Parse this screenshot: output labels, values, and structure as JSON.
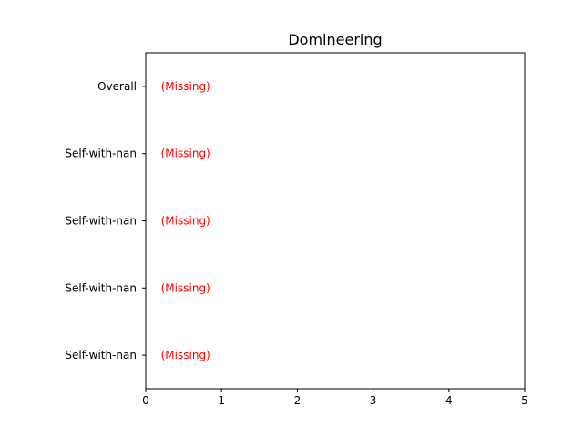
{
  "chart_data": {
    "type": "bar",
    "title": "Domineering",
    "xlabel": "",
    "ylabel": "",
    "xlim": [
      0,
      5
    ],
    "x_ticks": [
      "0",
      "1",
      "2",
      "3",
      "4",
      "5"
    ],
    "categories": [
      "Overall",
      "Self-with-nan",
      "Self-with-nan",
      "Self-with-nan",
      "Self-with-nan"
    ],
    "values": [
      null,
      null,
      null,
      null,
      null
    ],
    "annotations": [
      "(Missing)",
      "(Missing)",
      "(Missing)",
      "(Missing)",
      "(Missing)"
    ],
    "annotation_color": "#ff0000",
    "grid": false
  }
}
